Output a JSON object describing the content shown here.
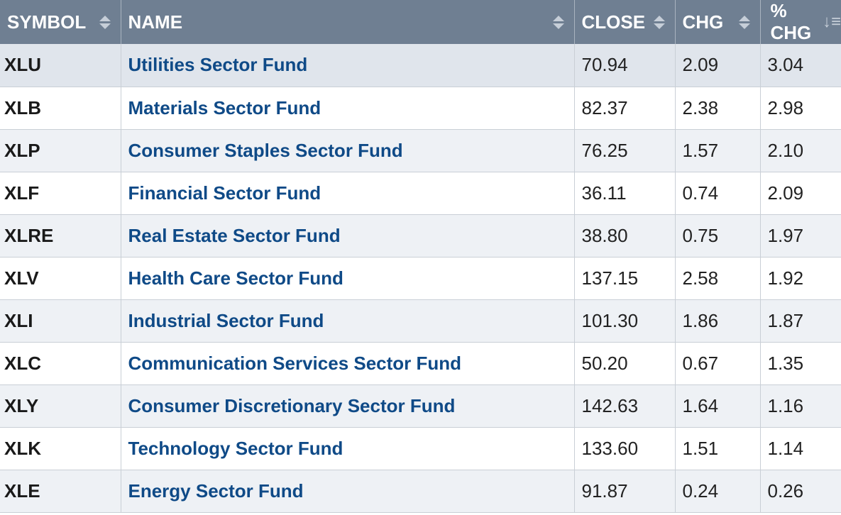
{
  "table": {
    "headers": {
      "symbol": "SYMBOL",
      "name": "NAME",
      "close": "CLOSE",
      "chg": "CHG",
      "pct_chg": "% CHG"
    },
    "rows": [
      {
        "symbol": "XLU",
        "name": "Utilities Sector Fund",
        "close": "70.94",
        "chg": "2.09",
        "pct_chg": "3.04"
      },
      {
        "symbol": "XLB",
        "name": "Materials Sector Fund",
        "close": "82.37",
        "chg": "2.38",
        "pct_chg": "2.98"
      },
      {
        "symbol": "XLP",
        "name": "Consumer Staples Sector Fund",
        "close": "76.25",
        "chg": "1.57",
        "pct_chg": "2.10"
      },
      {
        "symbol": "XLF",
        "name": "Financial Sector Fund",
        "close": "36.11",
        "chg": "0.74",
        "pct_chg": "2.09"
      },
      {
        "symbol": "XLRE",
        "name": "Real Estate Sector Fund",
        "close": "38.80",
        "chg": "0.75",
        "pct_chg": "1.97"
      },
      {
        "symbol": "XLV",
        "name": "Health Care Sector Fund",
        "close": "137.15",
        "chg": "2.58",
        "pct_chg": "1.92"
      },
      {
        "symbol": "XLI",
        "name": "Industrial Sector Fund",
        "close": "101.30",
        "chg": "1.86",
        "pct_chg": "1.87"
      },
      {
        "symbol": "XLC",
        "name": "Communication Services Sector Fund",
        "close": "50.20",
        "chg": "0.67",
        "pct_chg": "1.35"
      },
      {
        "symbol": "XLY",
        "name": "Consumer Discretionary Sector Fund",
        "close": "142.63",
        "chg": "1.64",
        "pct_chg": "1.16"
      },
      {
        "symbol": "XLK",
        "name": "Technology Sector Fund",
        "close": "133.60",
        "chg": "1.51",
        "pct_chg": "1.14"
      },
      {
        "symbol": "XLE",
        "name": "Energy Sector Fund",
        "close": "91.87",
        "chg": "0.24",
        "pct_chg": "0.26"
      }
    ]
  },
  "icons": {
    "sortable": "sort-updown-icon",
    "sorted_desc": "sort-descending-icon"
  },
  "colors": {
    "header_bg": "#6f7f92",
    "name_link": "#0f4a87",
    "row_alt": "#eef1f5"
  }
}
